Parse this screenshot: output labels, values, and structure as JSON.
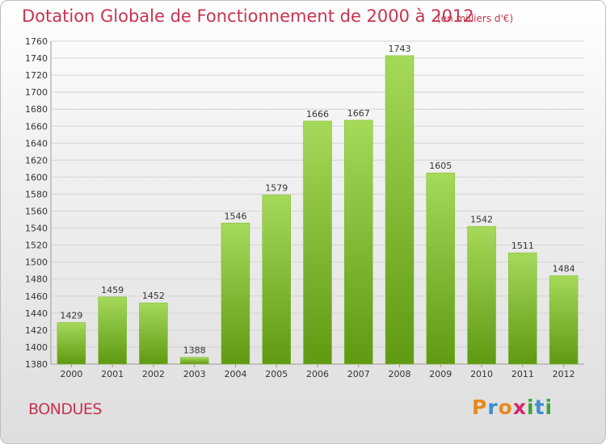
{
  "header": {
    "title": "Dotation Globale de Fonctionnement de 2000 à 2012",
    "subtitle": "(en milliers d'€)"
  },
  "footer": {
    "commune": "BONDUES",
    "logo_letters": [
      "P",
      "r",
      "o",
      "x",
      "i",
      "t",
      "i"
    ],
    "logo_colors": [
      "#e8891c",
      "#3a8fd0",
      "#e8891c",
      "#d6256b",
      "#3aa53a",
      "#3a8fd0",
      "#3aa53a"
    ]
  },
  "colors": {
    "bar_light": "#a5d95a",
    "bar_dark": "#5f9a12",
    "grid": "#d4d4d4",
    "axis_text": "#333333",
    "title": "#c8334f"
  },
  "chart_data": {
    "type": "bar",
    "categories": [
      "2000",
      "2001",
      "2002",
      "2003",
      "2004",
      "2005",
      "2006",
      "2007",
      "2008",
      "2009",
      "2010",
      "2011",
      "2012"
    ],
    "values": [
      1429,
      1459,
      1452,
      1388,
      1546,
      1579,
      1666,
      1667,
      1743,
      1605,
      1542,
      1511,
      1484
    ],
    "data_labels": [
      "1429",
      "1459",
      "1452",
      "1388",
      "1546",
      "1579",
      "1666",
      "1667",
      "1743",
      "1605",
      "1542",
      "1511",
      "1484"
    ],
    "yticks": [
      1380,
      1400,
      1420,
      1440,
      1460,
      1480,
      1500,
      1520,
      1540,
      1560,
      1580,
      1600,
      1620,
      1640,
      1660,
      1680,
      1700,
      1720,
      1740,
      1760
    ],
    "ylim": [
      1380,
      1760
    ],
    "grid": true,
    "xlabel": "",
    "ylabel": ""
  }
}
